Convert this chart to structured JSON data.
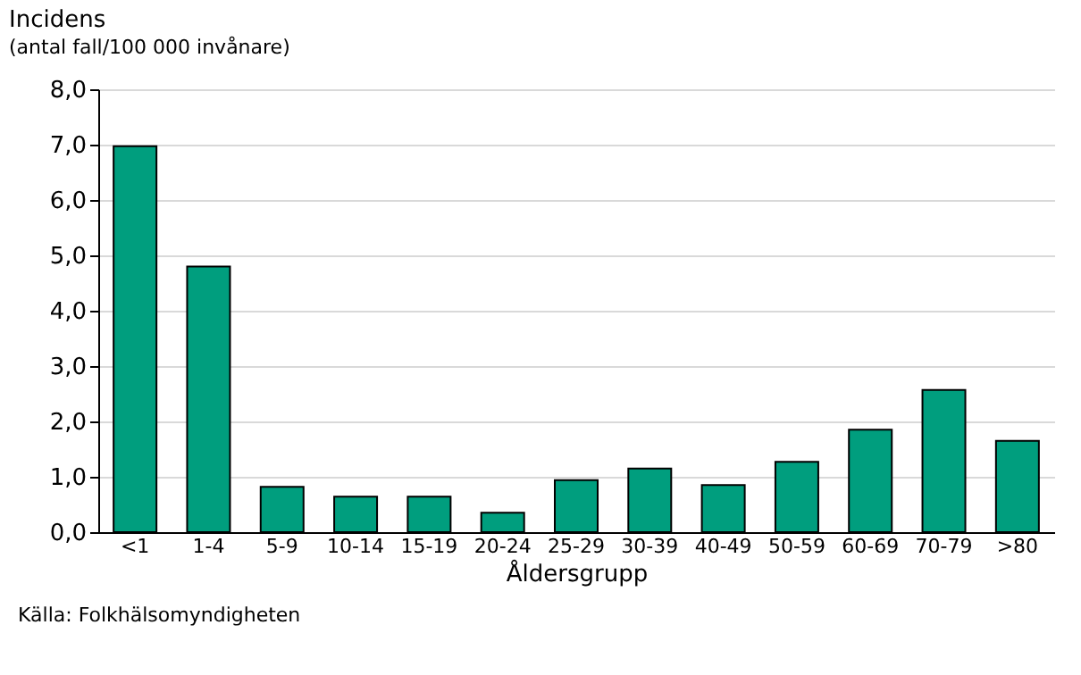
{
  "chart_data": {
    "type": "bar",
    "title": "Incidens",
    "subtitle": "(antal fall/100 000 invånare)",
    "xlabel": "Åldersgrupp",
    "categories": [
      "<1",
      "1-4",
      "5-9",
      "10-14",
      "15-19",
      "20-24",
      "25-29",
      "30-39",
      "40-49",
      "50-59",
      "60-69",
      "70-79",
      ">80"
    ],
    "values": [
      6.97,
      4.8,
      0.82,
      0.64,
      0.64,
      0.35,
      0.94,
      1.15,
      0.85,
      1.27,
      1.85,
      2.57,
      1.65
    ],
    "color": "#009e7e",
    "ylim": [
      0,
      8
    ],
    "yticks": [
      {
        "value": 0,
        "label": "0,0"
      },
      {
        "value": 1,
        "label": "1,0"
      },
      {
        "value": 2,
        "label": "2,0"
      },
      {
        "value": 3,
        "label": "3,0"
      },
      {
        "value": 4,
        "label": "4,0"
      },
      {
        "value": 5,
        "label": "5,0"
      },
      {
        "value": 6,
        "label": "6,0"
      },
      {
        "value": 7,
        "label": "7,0"
      },
      {
        "value": 8,
        "label": "8,0"
      }
    ],
    "grid": "y",
    "annotations": [
      "Källa: Folkhälsomyndigheten"
    ]
  }
}
